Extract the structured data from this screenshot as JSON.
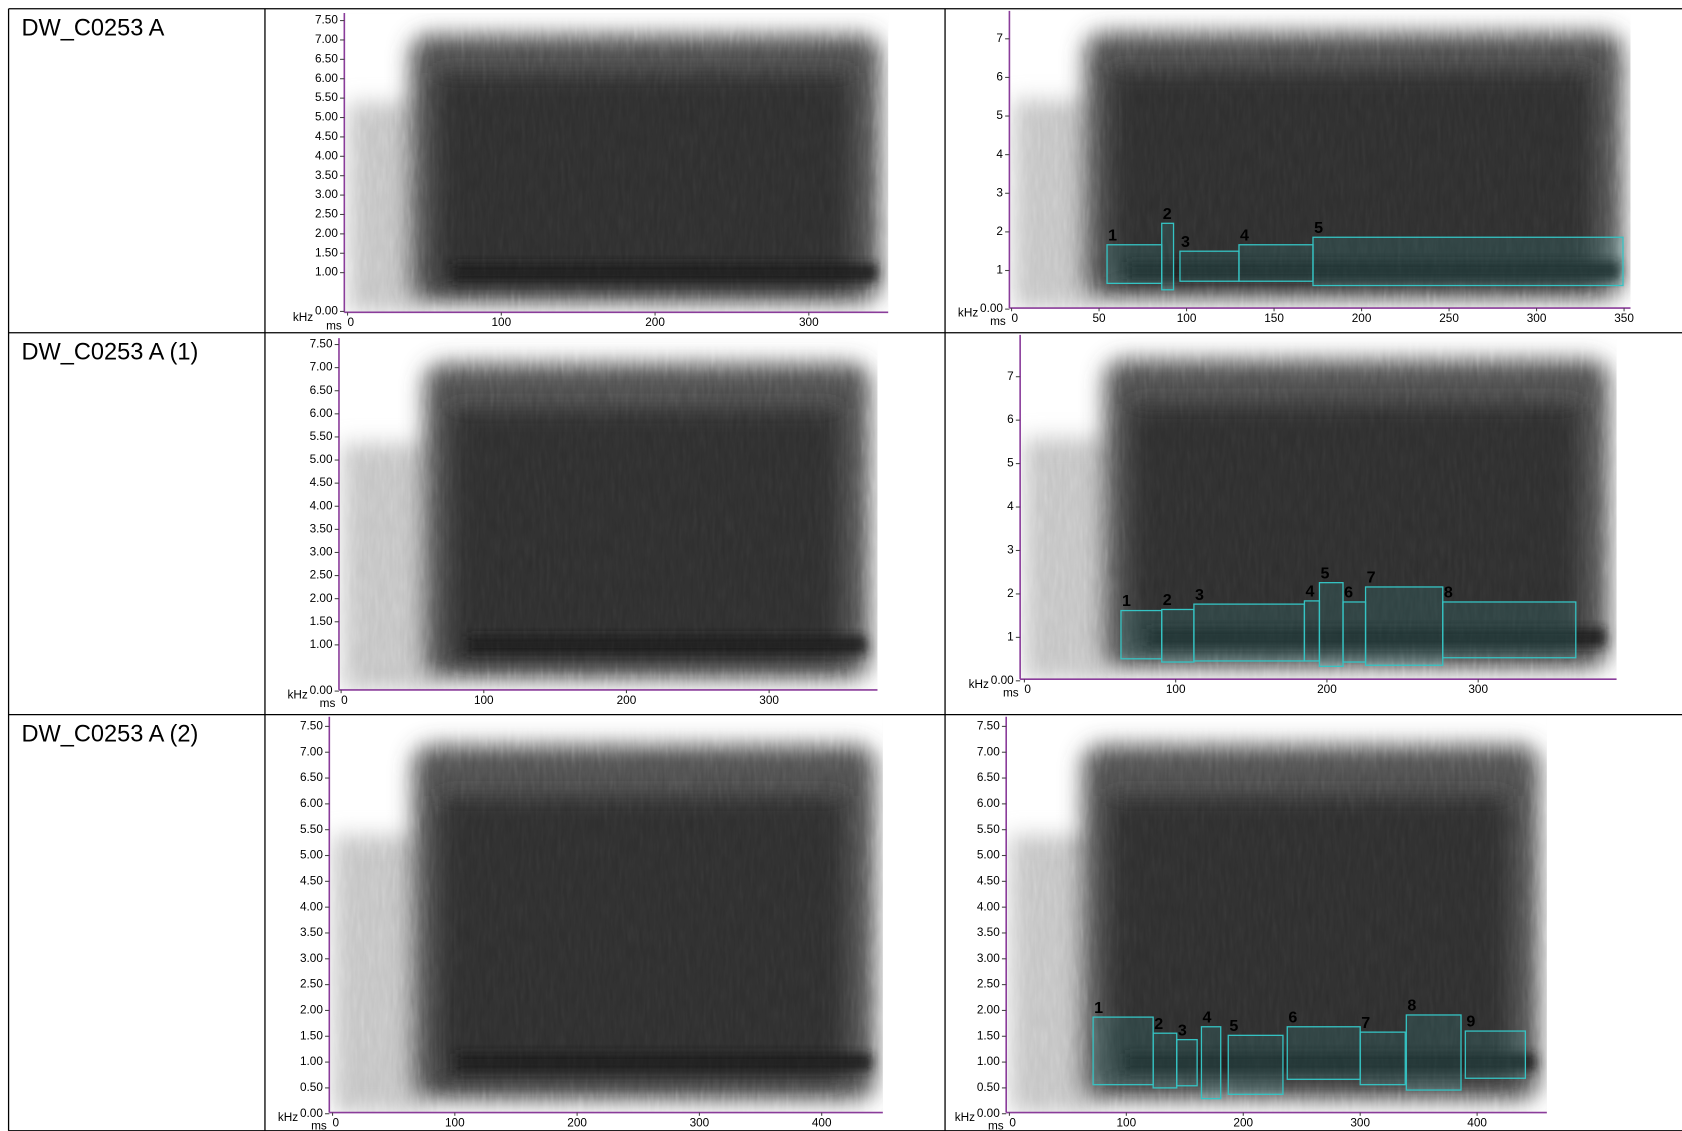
{
  "rows": [
    {
      "label": "DW_C0253 A",
      "left": {
        "yticks": [
          "7.50",
          "7.00",
          "6.50",
          "6.00",
          "5.50",
          "5.00",
          "4.50",
          "4.00",
          "3.50",
          "3.00",
          "2.50",
          "2.00",
          "1.50",
          "1.00",
          "0.00"
        ],
        "xticks": [
          "0",
          "100",
          "200",
          "300"
        ],
        "y_unit": "kHz",
        "x_unit": "ms"
      },
      "right": {
        "yticks": [
          "7",
          "6",
          "5",
          "4",
          "3",
          "2",
          "1",
          "0.00"
        ],
        "xticks": [
          "0",
          "50",
          "100",
          "150",
          "200",
          "250",
          "300",
          "350"
        ],
        "y_unit": "kHz",
        "x_unit": "ms",
        "segments": [
          "1",
          "2",
          "3",
          "4",
          "5"
        ]
      }
    },
    {
      "label": "DW_C0253 A (1)",
      "left": {
        "yticks": [
          "7.50",
          "7.00",
          "6.50",
          "6.00",
          "5.50",
          "5.00",
          "4.50",
          "4.00",
          "3.50",
          "3.00",
          "2.50",
          "2.00",
          "1.50",
          "1.00",
          "0.00"
        ],
        "xticks": [
          "0",
          "100",
          "200",
          "300"
        ],
        "y_unit": "kHz",
        "x_unit": "ms"
      },
      "right": {
        "yticks": [
          "7",
          "6",
          "5",
          "4",
          "3",
          "2",
          "1",
          "0.00"
        ],
        "xticks": [
          "0",
          "100",
          "200",
          "300"
        ],
        "y_unit": "kHz",
        "x_unit": "ms",
        "segments": [
          "1",
          "2",
          "3",
          "4",
          "5",
          "6",
          "7",
          "8"
        ]
      }
    },
    {
      "label": "DW_C0253 A (2)",
      "left": {
        "yticks": [
          "7.50",
          "7.00",
          "6.50",
          "6.00",
          "5.50",
          "5.00",
          "4.50",
          "4.00",
          "3.50",
          "3.00",
          "2.50",
          "2.00",
          "1.50",
          "1.00",
          "0.50",
          "0.00"
        ],
        "xticks": [
          "0",
          "100",
          "200",
          "300",
          "400"
        ],
        "y_unit": "kHz",
        "x_unit": "ms"
      },
      "right": {
        "yticks": [
          "7.50",
          "7.00",
          "6.50",
          "6.00",
          "5.50",
          "5.00",
          "4.50",
          "4.00",
          "3.50",
          "3.00",
          "2.50",
          "2.00",
          "1.50",
          "1.00",
          "0.50",
          "0.00"
        ],
        "xticks": [
          "0",
          "100",
          "200",
          "300",
          "400"
        ],
        "y_unit": "kHz",
        "x_unit": "ms",
        "segments": [
          "1",
          "2",
          "3",
          "4",
          "5",
          "6",
          "7",
          "8",
          "9"
        ]
      }
    }
  ]
}
